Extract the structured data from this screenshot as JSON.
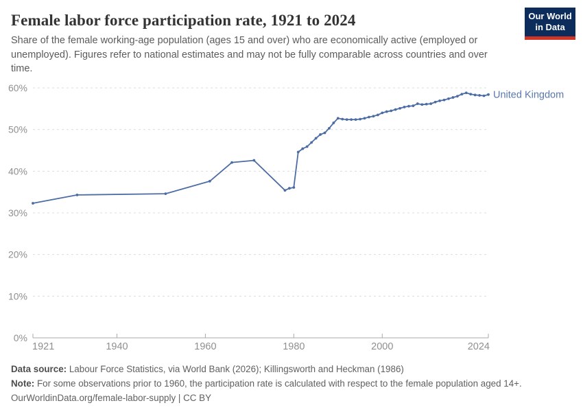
{
  "header": {
    "title": "Female labor force participation rate, 1921 to 2024",
    "subtitle": "Share of the female working-age population (ages 15 and over) who are economically active (employed or unemployed). Figures refer to national estimates and may not be fully comparable across countries and over time.",
    "logo": {
      "line1": "Our World",
      "line2": "in Data"
    }
  },
  "chart_data": {
    "type": "line",
    "title": "Female labor force participation rate, 1921 to 2024",
    "xlabel": "",
    "ylabel": "",
    "xlim": [
      1921,
      2024
    ],
    "ylim": [
      0,
      60
    ],
    "x_ticks": [
      1921,
      1940,
      1960,
      1980,
      2000,
      2024
    ],
    "y_ticks": [
      0,
      10,
      20,
      30,
      40,
      50,
      60
    ],
    "y_tick_suffix": "%",
    "grid": true,
    "legend_position": "end-of-line",
    "colors": {
      "line": "#4c6ca4",
      "entity_label": "#5878ad",
      "gridline": "#dcdcdc",
      "axis": "#a9a9a9",
      "tick_label": "#8f8f8f"
    },
    "series": [
      {
        "name": "United Kingdom",
        "points": [
          [
            1921,
            32.3
          ],
          [
            1931,
            34.3
          ],
          [
            1951,
            34.6
          ],
          [
            1961,
            37.6
          ],
          [
            1966,
            42.1
          ],
          [
            1971,
            42.6
          ],
          [
            1978,
            35.4
          ],
          [
            1979,
            35.9
          ],
          [
            1980,
            36.1
          ],
          [
            1981,
            44.6
          ],
          [
            1982,
            45.4
          ],
          [
            1983,
            45.9
          ],
          [
            1984,
            46.9
          ],
          [
            1985,
            47.9
          ],
          [
            1986,
            48.8
          ],
          [
            1987,
            49.2
          ],
          [
            1988,
            50.3
          ],
          [
            1989,
            51.6
          ],
          [
            1990,
            52.7
          ],
          [
            1991,
            52.5
          ],
          [
            1992,
            52.4
          ],
          [
            1993,
            52.4
          ],
          [
            1994,
            52.4
          ],
          [
            1995,
            52.5
          ],
          [
            1996,
            52.7
          ],
          [
            1997,
            53.0
          ],
          [
            1998,
            53.2
          ],
          [
            1999,
            53.5
          ],
          [
            2000,
            54.0
          ],
          [
            2001,
            54.3
          ],
          [
            2002,
            54.5
          ],
          [
            2003,
            54.8
          ],
          [
            2004,
            55.1
          ],
          [
            2005,
            55.4
          ],
          [
            2006,
            55.6
          ],
          [
            2007,
            55.7
          ],
          [
            2008,
            56.2
          ],
          [
            2009,
            56.0
          ],
          [
            2010,
            56.1
          ],
          [
            2011,
            56.2
          ],
          [
            2012,
            56.6
          ],
          [
            2013,
            56.9
          ],
          [
            2014,
            57.1
          ],
          [
            2015,
            57.4
          ],
          [
            2016,
            57.7
          ],
          [
            2017,
            58.0
          ],
          [
            2018,
            58.5
          ],
          [
            2019,
            58.8
          ],
          [
            2020,
            58.5
          ],
          [
            2021,
            58.3
          ],
          [
            2022,
            58.2
          ],
          [
            2023,
            58.1
          ],
          [
            2024,
            58.4
          ]
        ]
      }
    ]
  },
  "footer": {
    "data_source_label": "Data source:",
    "data_source": "Labour Force Statistics, via World Bank (2026); Killingsworth and Heckman (1986)",
    "note_label": "Note:",
    "note": "For some observations prior to 1960, the participation rate is calculated with respect to the female population aged 14+.",
    "link": "OurWorldinData.org/female-labor-supply",
    "separator": " | ",
    "license": "CC BY"
  }
}
